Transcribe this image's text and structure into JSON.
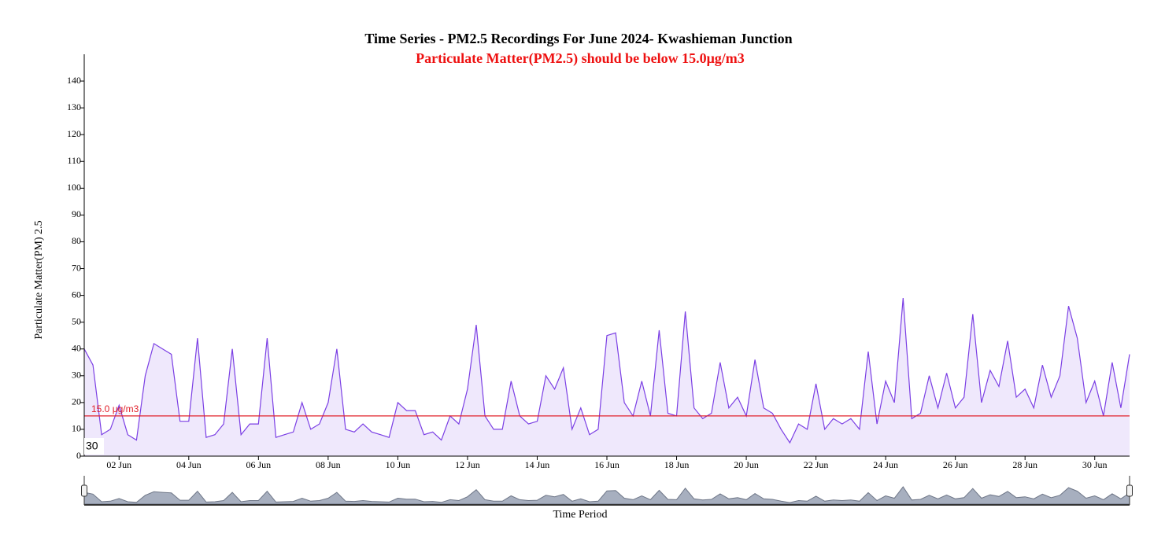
{
  "chart_data": {
    "type": "line",
    "title": "Time Series - PM2.5 Recordings For June 2024- Kwashieman Junction",
    "subtitle": "Particulate Matter(PM2.5) should be below 15.0μg/m3",
    "x_label": "Time Period",
    "y_label": "Particulate Matter(PM) 2.5",
    "annotation": "30",
    "color": "#7b3fe4",
    "fill": "#efe8fc",
    "threshold": {
      "value": 15,
      "label": "15.0 μg/m3",
      "color": "#e0202a"
    },
    "xlim": [
      1,
      31
    ],
    "xticks": [
      {
        "value": 2,
        "label": "02 Jun"
      },
      {
        "value": 4,
        "label": "04 Jun"
      },
      {
        "value": 6,
        "label": "06 Jun"
      },
      {
        "value": 8,
        "label": "08 Jun"
      },
      {
        "value": 10,
        "label": "10 Jun"
      },
      {
        "value": 12,
        "label": "12 Jun"
      },
      {
        "value": 14,
        "label": "14 Jun"
      },
      {
        "value": 16,
        "label": "16 Jun"
      },
      {
        "value": 18,
        "label": "18 Jun"
      },
      {
        "value": 20,
        "label": "20 Jun"
      },
      {
        "value": 22,
        "label": "22 Jun"
      },
      {
        "value": 24,
        "label": "24 Jun"
      },
      {
        "value": 26,
        "label": "26 Jun"
      },
      {
        "value": 28,
        "label": "28 Jun"
      },
      {
        "value": 30,
        "label": "30 Jun"
      }
    ],
    "ylim": [
      0,
      150
    ],
    "yticks": [
      0,
      10,
      20,
      30,
      40,
      50,
      60,
      70,
      80,
      90,
      100,
      110,
      120,
      130,
      140
    ],
    "x": [
      1,
      1.25,
      1.5,
      1.75,
      2,
      2.25,
      2.5,
      2.75,
      3,
      3.25,
      3.5,
      3.75,
      4,
      4.25,
      4.5,
      4.75,
      5,
      5.25,
      5.5,
      5.75,
      6,
      6.25,
      6.5,
      6.75,
      7,
      7.25,
      7.5,
      7.75,
      8,
      8.25,
      8.5,
      8.75,
      9,
      9.25,
      9.5,
      9.75,
      10,
      10.25,
      10.5,
      10.75,
      11,
      11.25,
      11.5,
      11.75,
      12,
      12.25,
      12.5,
      12.75,
      13,
      13.25,
      13.5,
      13.75,
      14,
      14.25,
      14.5,
      14.75,
      15,
      15.25,
      15.5,
      15.75,
      16,
      16.25,
      16.5,
      16.75,
      17,
      17.25,
      17.5,
      17.75,
      18,
      18.25,
      18.5,
      18.75,
      19,
      19.25,
      19.5,
      19.75,
      20,
      20.25,
      20.5,
      20.75,
      21,
      21.25,
      21.5,
      21.75,
      22,
      22.25,
      22.5,
      22.75,
      23,
      23.25,
      23.5,
      23.75,
      24,
      24.25,
      24.5,
      24.75,
      25,
      25.25,
      25.5,
      25.75,
      26,
      26.25,
      26.5,
      26.75,
      27,
      27.25,
      27.5,
      27.75,
      28,
      28.25,
      28.5,
      28.75,
      29,
      29.25,
      29.5,
      29.75,
      30,
      30.25,
      30.5,
      30.75,
      31
    ],
    "values": [
      40,
      34,
      8,
      10,
      19,
      8,
      6,
      30,
      42,
      40,
      38,
      13,
      13,
      44,
      7,
      8,
      12,
      40,
      8,
      12,
      12,
      44,
      7,
      8,
      9,
      20,
      10,
      12,
      20,
      40,
      10,
      9,
      12,
      9,
      8,
      7,
      20,
      17,
      17,
      8,
      9,
      6,
      15,
      12,
      25,
      49,
      15,
      10,
      10,
      28,
      15,
      12,
      13,
      30,
      25,
      33,
      10,
      18,
      8,
      10,
      45,
      46,
      20,
      15,
      28,
      15,
      47,
      16,
      15,
      54,
      18,
      14,
      16,
      35,
      18,
      22,
      15,
      36,
      18,
      16,
      10,
      5,
      12,
      10,
      27,
      10,
      14,
      12,
      14,
      10,
      39,
      12,
      28,
      20,
      59,
      14,
      16,
      30,
      18,
      31,
      18,
      22,
      53,
      20,
      32,
      26,
      43,
      22,
      25,
      18,
      34,
      22,
      30,
      56,
      44,
      20,
      28,
      15,
      35,
      18,
      38
    ]
  }
}
